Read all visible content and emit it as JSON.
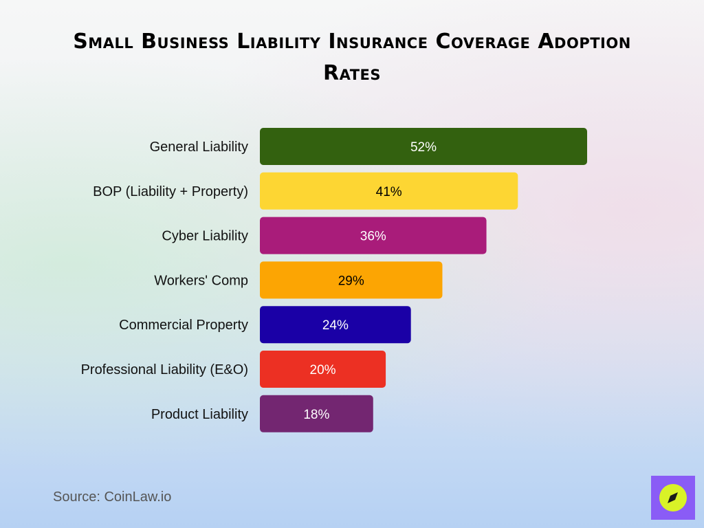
{
  "chart_data": {
    "type": "bar",
    "orientation": "horizontal",
    "title": "Small Business Liability Insurance Coverage Adoption Rates",
    "categories": [
      "General Liability",
      "BOP (Liability + Property)",
      "Cyber Liability",
      "Workers' Comp",
      "Commercial Property",
      "Professional Liability (E&O)",
      "Product Liability"
    ],
    "values": [
      52,
      41,
      36,
      29,
      24,
      20,
      18
    ],
    "value_labels": [
      "52%",
      "41%",
      "36%",
      "29%",
      "24%",
      "20%",
      "18%"
    ],
    "colors": [
      "#33610f",
      "#fdd633",
      "#a91c7a",
      "#fca503",
      "#1a00a6",
      "#ec3023",
      "#732671"
    ],
    "label_colors": [
      "#ffffff",
      "#000000",
      "#ffffff",
      "#000000",
      "#ffffff",
      "#ffffff",
      "#ffffff"
    ],
    "xlim": [
      0,
      52
    ],
    "grid": false,
    "legend": "none"
  },
  "source": "Source: CoinLaw.io",
  "logo": {
    "icon": "compass-icon",
    "background": "#8a5cf6",
    "circle": "#d9f227"
  }
}
